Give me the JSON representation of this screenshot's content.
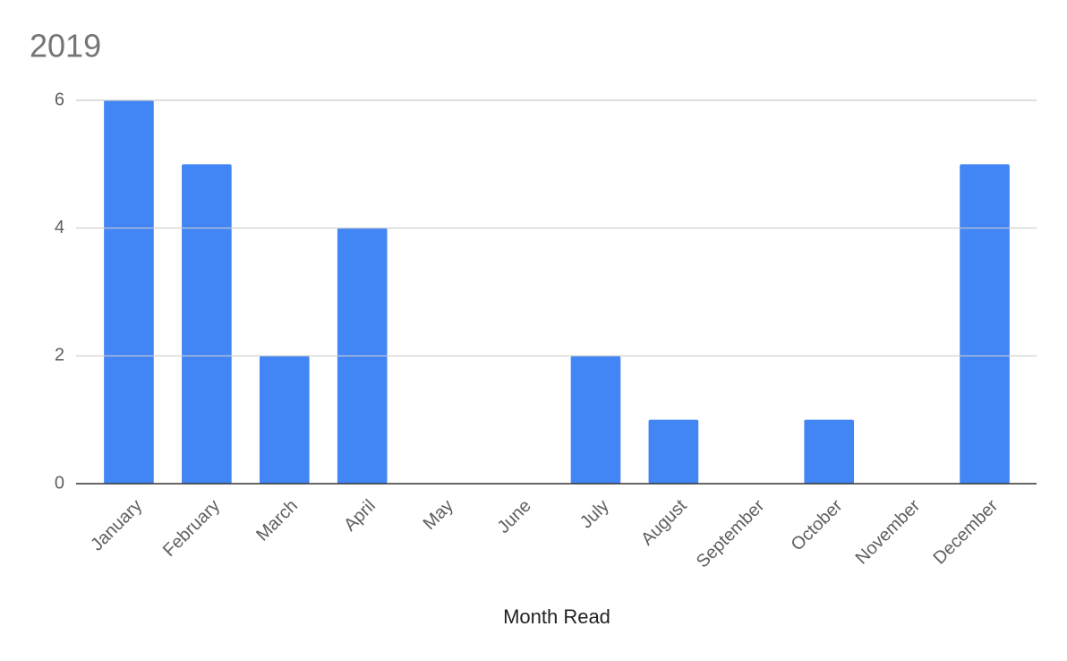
{
  "chart_data": {
    "type": "bar",
    "title": "2019",
    "x_label": "Month Read",
    "categories": [
      "January",
      "February",
      "March",
      "April",
      "May",
      "June",
      "July",
      "August",
      "September",
      "October",
      "November",
      "December"
    ],
    "values": [
      6,
      5,
      2,
      4,
      0,
      0,
      2,
      1,
      0,
      1,
      0,
      5
    ],
    "color": "#4285f4",
    "ylim": [
      0,
      6
    ],
    "yticks": [
      0,
      2,
      4,
      6
    ],
    "grid": true
  }
}
